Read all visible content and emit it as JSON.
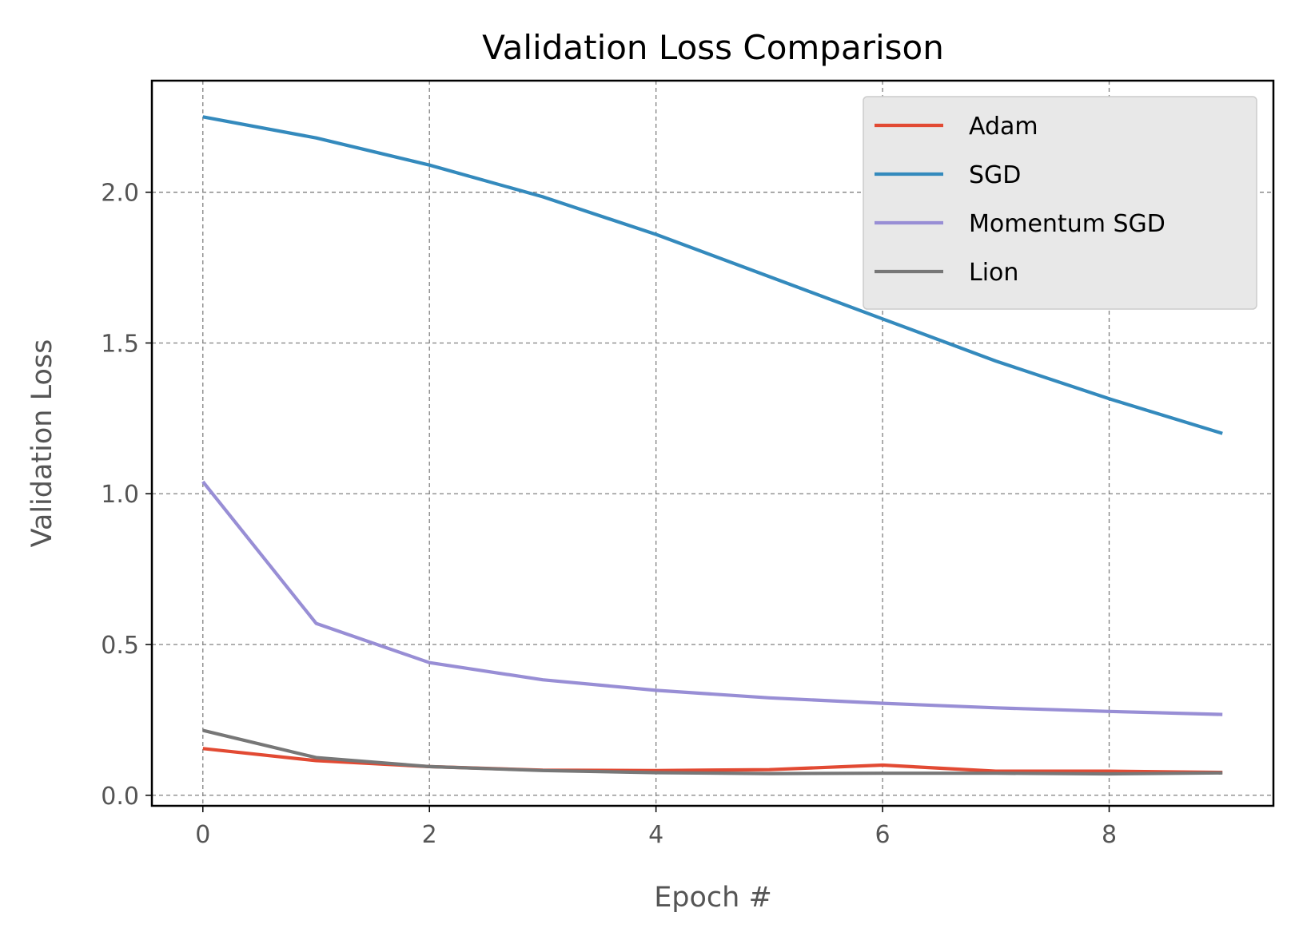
{
  "chart_data": {
    "type": "line",
    "title": "Validation Loss Comparison",
    "xlabel": "Epoch #",
    "ylabel": "Validation Loss",
    "x": [
      0,
      1,
      2,
      3,
      4,
      5,
      6,
      7,
      8,
      9
    ],
    "xlim": [
      -0.45,
      9.45
    ],
    "ylim": [
      -0.035,
      2.37
    ],
    "xticks": [
      0,
      2,
      4,
      6,
      8
    ],
    "yticks": [
      0.0,
      0.5,
      1.0,
      1.5,
      2.0
    ],
    "xtick_labels": [
      "0",
      "2",
      "4",
      "6",
      "8"
    ],
    "ytick_labels": [
      "0.0",
      "0.5",
      "1.0",
      "1.5",
      "2.0"
    ],
    "grid": true,
    "legend_position": "top-right",
    "series": [
      {
        "name": "Adam",
        "color": "#E24A33",
        "values": [
          0.155,
          0.115,
          0.095,
          0.083,
          0.082,
          0.085,
          0.1,
          0.08,
          0.08,
          0.076
        ]
      },
      {
        "name": "SGD",
        "color": "#348ABD",
        "values": [
          2.25,
          2.18,
          2.09,
          1.985,
          1.86,
          1.72,
          1.58,
          1.44,
          1.315,
          1.2
        ]
      },
      {
        "name": "Momentum SGD",
        "color": "#988ED5",
        "values": [
          1.04,
          0.57,
          0.44,
          0.383,
          0.348,
          0.323,
          0.305,
          0.29,
          0.278,
          0.268
        ]
      },
      {
        "name": "Lion",
        "color": "#777777",
        "values": [
          0.215,
          0.125,
          0.095,
          0.082,
          0.075,
          0.072,
          0.073,
          0.073,
          0.071,
          0.074
        ]
      }
    ]
  }
}
